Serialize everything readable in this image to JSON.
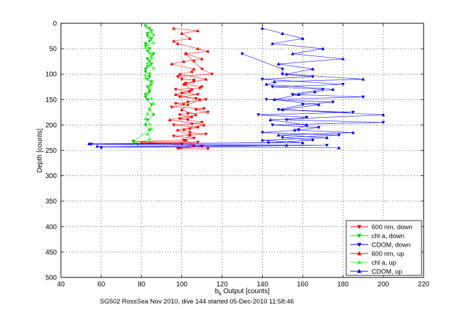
{
  "chart_data": {
    "type": "scatter",
    "title": "",
    "xlabel_main": "b",
    "xlabel_sub": "b",
    "xlabel_rest": " Output [counts]",
    "ylabel": "Depth [counts]",
    "caption": "SG502 RossSea Nov 2010, dive 144 started 05-Dec-2010 11:58:46",
    "xlim": [
      40,
      220
    ],
    "ylim": [
      0,
      500
    ],
    "y_reversed": true,
    "grid": "dotted",
    "legend_position": "bottom-right",
    "xticks": [
      40,
      60,
      80,
      100,
      120,
      140,
      160,
      180,
      200,
      220
    ],
    "yticks": [
      0,
      50,
      100,
      150,
      200,
      250,
      300,
      350,
      400,
      450,
      500
    ],
    "series": [
      {
        "name": "600 nm, down",
        "color": "#ff0000",
        "marker": "down",
        "x": [
          100,
          106,
          102,
          110,
          97,
          104,
          108,
          99,
          112,
          103,
          101,
          95,
          107,
          113,
          99,
          105,
          103,
          110,
          96,
          108,
          101,
          104,
          115,
          98,
          106,
          102,
          109,
          100,
          107,
          97,
          111,
          103,
          99,
          105,
          104,
          112,
          96,
          106,
          101,
          108,
          100,
          110,
          98,
          113,
          104,
          76,
          80,
          102,
          106,
          110
        ],
        "y": [
          110,
          115,
          120,
          125,
          130,
          135,
          140,
          145,
          150,
          155,
          160,
          165,
          170,
          175,
          180,
          185,
          190,
          195,
          200,
          205,
          210,
          215,
          100,
          105,
          112,
          118,
          128,
          138,
          148,
          158,
          168,
          178,
          188,
          198,
          208,
          218,
          222,
          226,
          230,
          234,
          238,
          242,
          246,
          247,
          220,
          233,
          235,
          60,
          75,
          90
        ]
      },
      {
        "name": "chl a, down",
        "color": "#00cc00",
        "marker": "down",
        "x": [
          82,
          84,
          83,
          85,
          82,
          84,
          86,
          83,
          85,
          82,
          84,
          83,
          85,
          84,
          82,
          83,
          85,
          84,
          86,
          83,
          82,
          84,
          85,
          83,
          84,
          82,
          83,
          85,
          84,
          83,
          82,
          84,
          85,
          83,
          84,
          82,
          76,
          78
        ],
        "y": [
          5,
          10,
          20,
          30,
          40,
          50,
          60,
          70,
          80,
          90,
          100,
          110,
          120,
          130,
          140,
          150,
          160,
          170,
          180,
          190,
          200,
          210,
          15,
          25,
          35,
          45,
          55,
          65,
          75,
          85,
          95,
          105,
          115,
          125,
          135,
          145,
          232,
          238
        ]
      },
      {
        "name": "CDOM, down",
        "color": "#0000ff",
        "marker": "down",
        "x": [
          150,
          165,
          140,
          180,
          145,
          170,
          155,
          190,
          142,
          175,
          160,
          148,
          185,
          138,
          162,
          152,
          200,
          145,
          168,
          158,
          140,
          178,
          150,
          165,
          143,
          172,
          55,
          60,
          130,
          150
        ],
        "y": [
          100,
          105,
          110,
          120,
          125,
          130,
          140,
          145,
          150,
          155,
          160,
          170,
          175,
          180,
          185,
          190,
          195,
          200,
          205,
          210,
          215,
          220,
          225,
          230,
          235,
          240,
          238,
          245,
          60,
          90
        ]
      },
      {
        "name": "600 nm, up",
        "color": "#ff0000",
        "marker": "up",
        "x": [
          96,
          100,
          104,
          98,
          108,
          102,
          110,
          95,
          106,
          99,
          112,
          101,
          105,
          97,
          109,
          103,
          100,
          107,
          94,
          111,
          98,
          104,
          102,
          106,
          99,
          108,
          96,
          113,
          101,
          105
        ],
        "y": [
          10,
          20,
          30,
          40,
          50,
          60,
          70,
          80,
          90,
          100,
          110,
          120,
          130,
          140,
          150,
          160,
          170,
          180,
          190,
          200,
          210,
          220,
          230,
          240,
          245,
          15,
          35,
          55,
          75,
          95
        ]
      },
      {
        "name": "chl a, up",
        "color": "#33ff33",
        "marker": "up",
        "x": [
          83,
          85,
          84,
          86,
          82,
          84,
          85,
          83,
          86,
          84,
          82,
          85,
          84,
          83,
          85,
          86,
          84,
          83,
          82,
          84,
          85,
          83,
          84,
          86,
          83,
          85,
          84,
          82,
          84,
          77
        ],
        "y": [
          8,
          18,
          28,
          38,
          48,
          58,
          68,
          78,
          88,
          98,
          108,
          118,
          128,
          138,
          148,
          158,
          168,
          178,
          188,
          198,
          208,
          218,
          228,
          22,
          42,
          62,
          82,
          102,
          122,
          236
        ]
      },
      {
        "name": "CDOM, up",
        "color": "#0000ff",
        "marker": "up",
        "x": [
          140,
          150,
          160,
          145,
          170,
          155,
          180,
          148,
          165,
          152,
          190,
          142,
          175,
          158,
          146,
          168,
          150,
          200,
          144,
          162,
          156,
          185,
          148,
          172,
          140,
          160,
          152,
          178,
          146,
          166,
          54,
          58
        ],
        "y": [
          10,
          20,
          30,
          40,
          50,
          60,
          70,
          80,
          90,
          100,
          110,
          120,
          130,
          140,
          150,
          160,
          170,
          180,
          190,
          200,
          210,
          215,
          220,
          225,
          230,
          235,
          240,
          245,
          115,
          135,
          237,
          242
        ]
      }
    ]
  }
}
